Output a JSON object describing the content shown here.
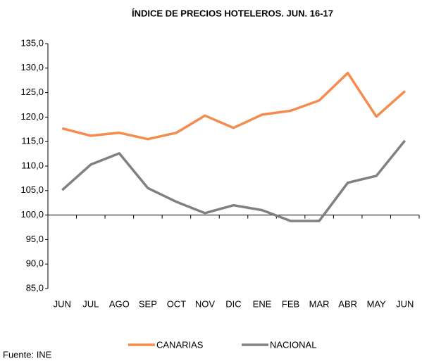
{
  "chart_data": {
    "type": "line",
    "title": "ÍNDICE DE PRECIOS HOTELEROS. JUN. 16-17",
    "categories": [
      "JUN",
      "JUL",
      "AGO",
      "SEP",
      "OCT",
      "NOV",
      "DIC",
      "ENE",
      "FEB",
      "MAR",
      "ABR",
      "MAY",
      "JUN"
    ],
    "series": [
      {
        "name": "CANARIAS",
        "color": "#f58b4c",
        "values": [
          117.7,
          116.2,
          116.8,
          115.5,
          116.8,
          120.3,
          117.8,
          120.5,
          121.3,
          123.4,
          129.0,
          120.1,
          125.3
        ]
      },
      {
        "name": "NACIONAL",
        "color": "#808080",
        "values": [
          105.1,
          110.3,
          112.6,
          105.5,
          102.7,
          100.4,
          102.0,
          101.0,
          98.8,
          98.8,
          106.6,
          108.0,
          115.2
        ]
      }
    ],
    "ylim": [
      85,
      135
    ],
    "yticks": [
      {
        "value": 85,
        "label": "85,0"
      },
      {
        "value": 90,
        "label": "90,0"
      },
      {
        "value": 95,
        "label": "95,0"
      },
      {
        "value": 100,
        "label": "100,0"
      },
      {
        "value": 105,
        "label": "105,0"
      },
      {
        "value": 110,
        "label": "110,0"
      },
      {
        "value": 115,
        "label": "115,0"
      },
      {
        "value": 120,
        "label": "120,0"
      },
      {
        "value": 125,
        "label": "125,0"
      },
      {
        "value": 130,
        "label": "130,0"
      },
      {
        "value": 135,
        "label": "135,0"
      }
    ],
    "xaxis_cross": 100,
    "grid": false,
    "legend": "bottom",
    "source": "Fuente: INE"
  }
}
